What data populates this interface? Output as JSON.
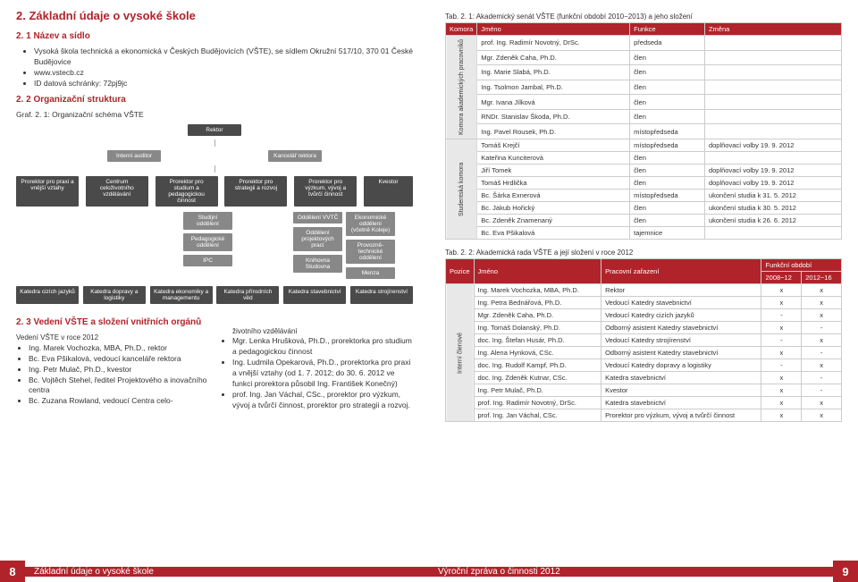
{
  "left": {
    "title": "2. Základní údaje o vysoké škole",
    "s1": "2. 1 Název a sídlo",
    "bullets1": [
      "Vysoká škola technická a ekonomická v Českých Budějovicích (VŠTE), se sídlem Okružní 517/10, 370 01 České Budějovice",
      "www.vstecb.cz",
      "ID datová schránky: 72pj9jc"
    ],
    "s2": "2. 2 Organizační struktura",
    "graf": "Graf. 2. 1:     Organizační schéma VŠTE",
    "org": {
      "rektor": "Rektor",
      "audit": "Interní auditor",
      "kanc": "Kancelář rektora",
      "pror": [
        "Prorektor pro praxi a vnější vztahy",
        "Centrum celoživotního vzdělávání",
        "Prorektor pro studium a pedagogickou činnost",
        "Prorektor pro strategii a rozvoj",
        "Prorektor pro výzkum, vývoj a tvůrčí činnost",
        "Kvestor"
      ],
      "odd1": [
        "Studijní oddělení",
        "Pedagogické oddělení",
        "IPC"
      ],
      "odd2": [
        "Oddělení VVTČ",
        "Oddělení projektových prací",
        "Knihovna Studovna"
      ],
      "odd3": [
        "Ekonomické oddělení (včetně Koleje)",
        "Provozně-technické oddělení",
        "Menza"
      ],
      "kat": [
        "Katedra cizích jazyků",
        "Katedra dopravy a logistiky",
        "Katedra ekonomiky a managementu",
        "Katedra přírodních věd",
        "Katedra stavebnictví",
        "Katedra strojírenství"
      ]
    },
    "s3": "2. 3 Vedení VŠTE a složení vnitřních orgánů",
    "vedeni_h": "Vedení VŠTE v roce 2012",
    "vedeni": [
      "Ing. Marek Vochozka, MBA, Ph.D., rektor",
      "Bc. Eva Pšikalová, vedoucí kanceláře rektora",
      "Ing. Petr Mulač, Ph.D., kvestor",
      "Bc. Vojtěch Stehel, ředitel Projektového a inovačního centra",
      "Bc. Zuzana Rowland, vedoucí Centra celo-"
    ],
    "col2top": "životního vzdělávání",
    "col2": [
      "Mgr. Lenka Hrušková, Ph.D., prorektorka pro studium a pedagogickou činnost",
      "Ing. Ludmila Opekarová, Ph.D., prorektorka pro praxi a vnější vztahy (od 1. 7. 2012; do 30. 6. 2012 ve funkci prorektora působil Ing. František Konečný)",
      "prof. Ing. Jan Váchal, CSc., prorektor pro výzkum, vývoj a tvůrčí činnost, prorektor pro strategii a rozvoj."
    ]
  },
  "right": {
    "tab1": "Tab. 2. 1:        Akademický senát VŠTE (funkční období 2010−2013) a jeho složení",
    "t1h": [
      "Komora",
      "Jméno",
      "Funkce",
      "Změna"
    ],
    "t1g1": "Komora akademických pracovníků",
    "t1r1": [
      [
        "prof. Ing. Radimír Novotný, DrSc.",
        "předseda",
        ""
      ],
      [
        "Mgr. Zdeněk Caha, Ph.D.",
        "člen",
        ""
      ],
      [
        "Ing. Marie Slabá, Ph.D.",
        "člen",
        ""
      ],
      [
        "Ing. Tsolmon Jambal, Ph.D.",
        "člen",
        ""
      ],
      [
        "Mgr. Ivana Jílková",
        "člen",
        ""
      ],
      [
        "RNDr. Stanislav Škoda, Ph.D.",
        "člen",
        ""
      ],
      [
        "Ing. Pavel Rousek, Ph.D.",
        "místopředseda",
        ""
      ]
    ],
    "t1g2": "Studentská komora",
    "t1r2": [
      [
        "Tomáš Krejčí",
        "místopředseda",
        "doplňovací volby 19. 9. 2012"
      ],
      [
        "Kateřina Kunciterová",
        "člen",
        ""
      ],
      [
        "Jiří Tomek",
        "člen",
        "doplňovací volby 19. 9. 2012"
      ],
      [
        "Tomáš Hrdlička",
        "člen",
        "doplňovací volby 19. 9. 2012"
      ],
      [
        "Bc. Šárka Exnerová",
        "místopředseda",
        "ukončení studia k 31. 5. 2012"
      ],
      [
        "Bc. Jakub Hořický",
        "člen",
        "ukončení studia k 30. 5. 2012"
      ],
      [
        "Bc. Zdeněk Znamenaný",
        "člen",
        "ukončení studia k 26. 6. 2012"
      ],
      [
        "Bc. Eva Pšikalová",
        "tajemnice",
        ""
      ]
    ],
    "tab2": "Tab. 2. 2:        Akademická rada VŠTE a její složení v roce 2012",
    "t2h": [
      "Pozice",
      "Jméno",
      "Pracovní zařazení",
      "Funkční období"
    ],
    "t2h2": [
      "2008−12",
      "2012−16"
    ],
    "t2g": "Interní členové",
    "t2r": [
      [
        "Ing. Marek Vochozka, MBA, Ph.D.",
        "Rektor",
        "x",
        "x"
      ],
      [
        "Ing. Petra Bednářová, Ph.D.",
        "Vedoucí Katedry stavebnictví",
        "x",
        "x"
      ],
      [
        "Mgr. Zdeněk Caha, Ph.D.",
        "Vedoucí Katedry cizích jazyků",
        "-",
        "x"
      ],
      [
        "Ing. Tomáš Dolanský, Ph.D.",
        "Odborný asistent Katedry stavebnictví",
        "x",
        "-"
      ],
      [
        "doc. Ing. Štefan Husár, Ph.D.",
        "Vedoucí Katedry strojírenství",
        "-",
        "x"
      ],
      [
        "Ing. Alena Hynková, CSc.",
        "Odborný asistent Katedry stavebnictví",
        "x",
        "-"
      ],
      [
        "doc. Ing. Rudolf Kampf, Ph.D.",
        "Vedoucí Katedry dopravy a logistiky",
        "-",
        "x"
      ],
      [
        "doc. Ing. Zdeněk Kutnar, CSc.",
        "Katedra stavebnictví",
        "x",
        "-"
      ],
      [
        "Ing. Petr Mulač, Ph.D.",
        "Kvestor",
        "x",
        "-"
      ],
      [
        "prof. Ing. Radimír Novotný, DrSc.",
        "Katedra stavebnictví",
        "x",
        "x"
      ],
      [
        "prof. Ing. Jan Váchal, CSc.",
        "Prorektor pro výzkum, vývoj a tvůrčí činnost",
        "x",
        "x"
      ]
    ]
  },
  "footer": {
    "pl": "8",
    "tl": "Základní údaje o vysoké škole",
    "tr": "Výroční zpráva o činnosti 2012",
    "pr": "9"
  }
}
